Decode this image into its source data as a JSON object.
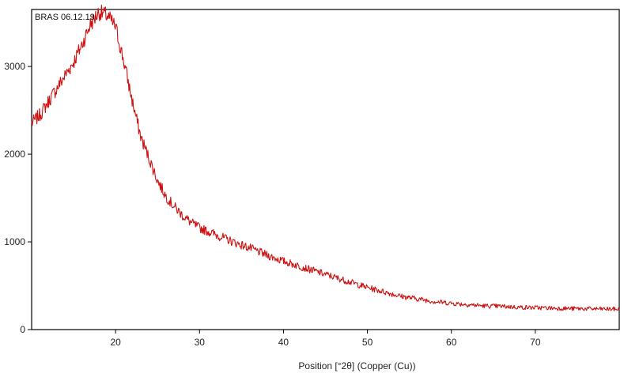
{
  "chart_data": {
    "type": "line",
    "title": "BRAS 06.12.19",
    "xlabel": "Position [°2θ] (Copper (Cu))",
    "ylabel": "",
    "xlim": [
      10,
      80
    ],
    "ylim": [
      0,
      3650
    ],
    "x_ticks": [
      20,
      30,
      40,
      50,
      60,
      70
    ],
    "y_ticks": [
      0,
      1000,
      2000,
      3000
    ],
    "grid": false,
    "legend": "none",
    "colors": {
      "series": "#cc1111",
      "frame": "#000000",
      "background": "#ffffff"
    },
    "series": [
      {
        "x": [
          10,
          11,
          12,
          13,
          14,
          15,
          16,
          17,
          18,
          19,
          20,
          21,
          22,
          23,
          24,
          25,
          26,
          27,
          28,
          29,
          30,
          32,
          34,
          36,
          38,
          40,
          42,
          44,
          46,
          48,
          50,
          52,
          54,
          56,
          58,
          60,
          62,
          64,
          66,
          68,
          70,
          72,
          74,
          76,
          78,
          80
        ],
        "values": [
          2350,
          2450,
          2600,
          2750,
          2900,
          3050,
          3250,
          3480,
          3620,
          3580,
          3450,
          3050,
          2600,
          2200,
          1950,
          1700,
          1520,
          1400,
          1300,
          1220,
          1160,
          1080,
          1000,
          930,
          850,
          780,
          720,
          660,
          600,
          540,
          480,
          430,
          380,
          350,
          320,
          300,
          285,
          270,
          265,
          255,
          250,
          245,
          240,
          238,
          235,
          232
        ]
      }
    ]
  }
}
